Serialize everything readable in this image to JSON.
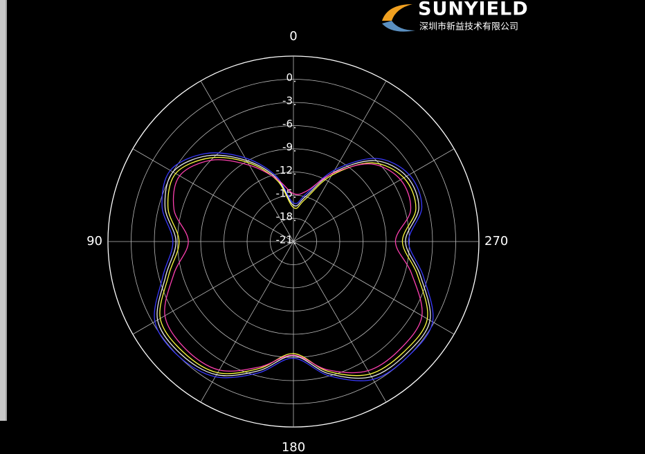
{
  "chart_data": {
    "type": "polar",
    "theta": [
      0,
      15,
      30,
      45,
      60,
      75,
      90,
      105,
      120,
      135,
      150,
      165,
      180,
      195,
      210,
      225,
      240,
      255,
      270,
      285,
      300,
      315,
      330,
      345
    ],
    "series": [
      {
        "color": "#3a3aff",
        "values": [
          -16,
          -12.2,
          -8.5,
          -4.9,
          -2.6,
          -3.4,
          -5.4,
          -3.5,
          -0.3,
          0,
          -0.8,
          -3.4,
          -5.9,
          -3.0,
          -0.4,
          0,
          -0.2,
          -3.6,
          -6.1,
          -3.8,
          -3.7,
          -5.8,
          -10.3,
          -14.6
        ]
      },
      {
        "color": "#e8e8e8",
        "values": [
          -16.3,
          -12.5,
          -8.9,
          -5.3,
          -3.0,
          -3.8,
          -5.8,
          -3.9,
          -0.7,
          -0.4,
          -1.1,
          -3.7,
          -6.2,
          -3.3,
          -0.8,
          -0.4,
          -0.6,
          -4.0,
          -6.5,
          -4.2,
          -4.1,
          -6.2,
          -10.7,
          -15
        ]
      },
      {
        "color": "#ffff40",
        "values": [
          -16.6,
          -12.8,
          -9.2,
          -5.7,
          -3.4,
          -4.2,
          -6.2,
          -4.3,
          -1.1,
          -0.8,
          -1.4,
          -4.0,
          -6.5,
          -3.6,
          -1.2,
          -0.8,
          -1.0,
          -4.4,
          -6.9,
          -4.6,
          -4.5,
          -6.6,
          -11.1,
          -15.4
        ]
      },
      {
        "color": "#ff40b0",
        "values": [
          -14.8,
          -12.6,
          -9.6,
          -6.1,
          -4.0,
          -5.0,
          -7.4,
          -5.0,
          -1.8,
          -1.3,
          -1.8,
          -4.2,
          -6.3,
          -3.8,
          -1.7,
          -1.4,
          -1.8,
          -5.2,
          -7.8,
          -5.3,
          -5.0,
          -6.8,
          -10.8,
          -14.2
        ]
      }
    ],
    "rlim": [
      -21,
      3
    ],
    "rticks": [
      0,
      -3,
      -6,
      -9,
      -12,
      -15,
      -18,
      -21
    ],
    "thetaticks": [
      0,
      90,
      180,
      270
    ],
    "grid": true
  },
  "logo": {
    "name": "SUNYIELD",
    "company": "深圳市新益技术有限公司"
  }
}
